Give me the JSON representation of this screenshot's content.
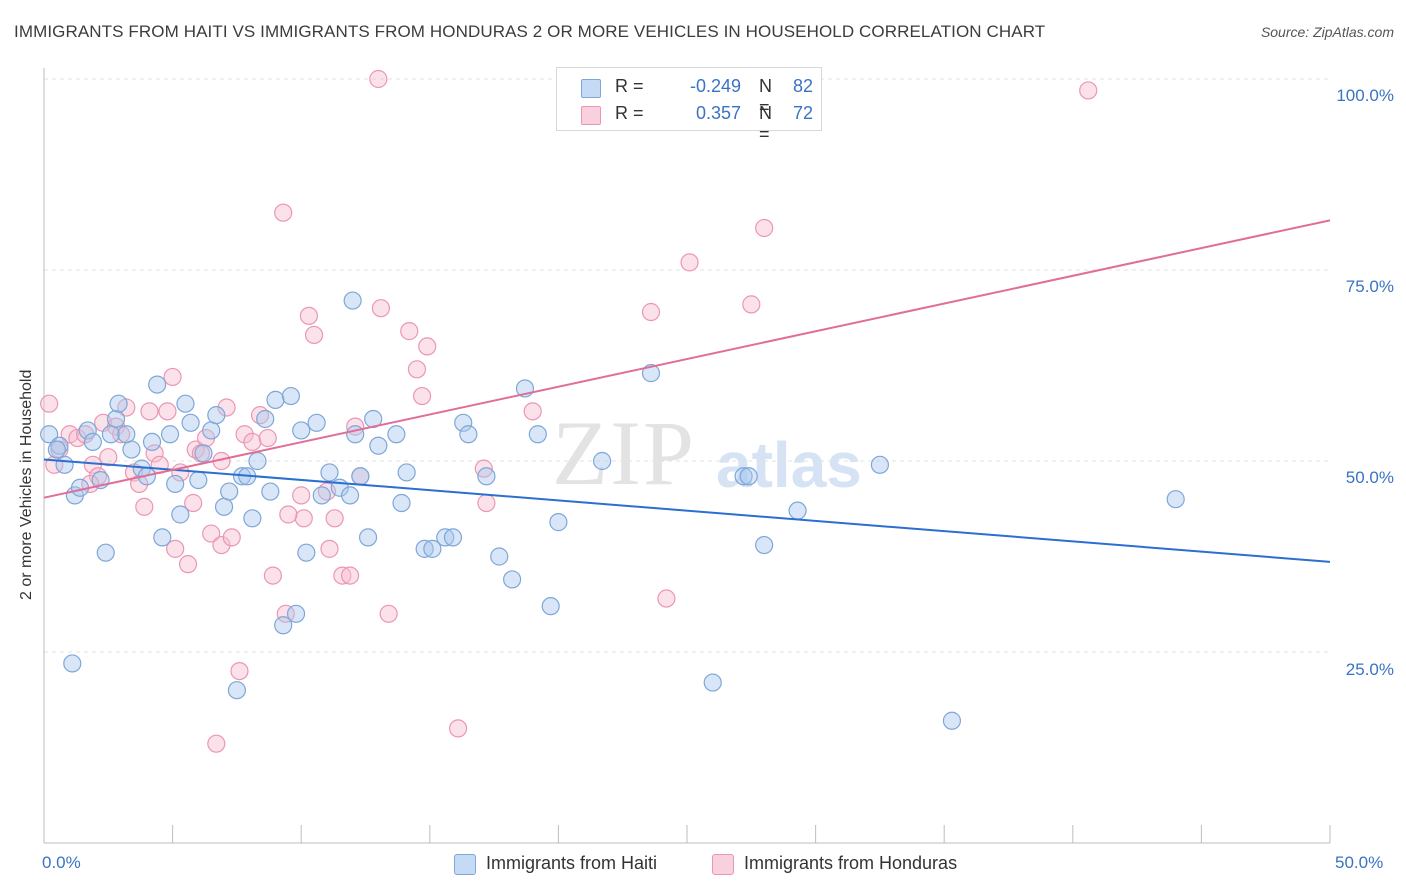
{
  "title": "IMMIGRANTS FROM HAITI VS IMMIGRANTS FROM HONDURAS 2 OR MORE VEHICLES IN HOUSEHOLD CORRELATION CHART",
  "source": "Source: ZipAtlas.com",
  "watermark": {
    "zip": "ZIP",
    "atlas": "atlas"
  },
  "legend": {
    "haiti": {
      "r_label": "R =",
      "r_value": "-0.249",
      "n_label": "N =",
      "n_value": "82"
    },
    "honduras": {
      "r_label": "R =",
      "r_value": "0.357",
      "n_label": "N =",
      "n_value": "72"
    }
  },
  "bottom_legend": {
    "haiti": "Immigrants from Haiti",
    "honduras": "Immigrants from Honduras"
  },
  "colors": {
    "haiti_fill": "#a9c8ee",
    "haiti_stroke": "#7ea7d8",
    "haiti_line": "#2a6fd1",
    "honduras_fill": "#f6bed0",
    "honduras_stroke": "#ec96b3",
    "honduras_line": "#e06e97",
    "tick_text": "#3a73c4",
    "grid": "#e2e2e2"
  },
  "chart_data": {
    "type": "scatter",
    "title": "IMMIGRANTS FROM HAITI VS IMMIGRANTS FROM HONDURAS 2 OR MORE VEHICLES IN HOUSEHOLD CORRELATION CHART",
    "xlabel": "",
    "ylabel": "2 or more Vehicles in Household",
    "xlim": [
      0,
      50
    ],
    "ylim": [
      0,
      100
    ],
    "x_tick_labels": [
      "0.0%",
      "50.0%"
    ],
    "y_ticks": [
      25,
      50,
      75,
      100
    ],
    "y_tick_labels": [
      "25.0%",
      "50.0%",
      "75.0%",
      "100.0%"
    ],
    "grid": true,
    "legend_position": "top-center",
    "series": [
      {
        "name": "Immigrants from Haiti",
        "R": -0.249,
        "N": 82,
        "trend": {
          "x": [
            0,
            50
          ],
          "y": [
            50.2,
            36.8
          ]
        },
        "points": [
          [
            0.2,
            53.5
          ],
          [
            0.6,
            52
          ],
          [
            0.8,
            49.5
          ],
          [
            1.1,
            23.5
          ],
          [
            1.2,
            45.5
          ],
          [
            1.4,
            46.5
          ],
          [
            1.7,
            54
          ],
          [
            1.9,
            52.5
          ],
          [
            2.2,
            47.5
          ],
          [
            2.4,
            38
          ],
          [
            2.6,
            53.5
          ],
          [
            2.8,
            55.5
          ],
          [
            2.9,
            57.5
          ],
          [
            3.2,
            53.5
          ],
          [
            3.4,
            51.5
          ],
          [
            3.8,
            49
          ],
          [
            4.0,
            48
          ],
          [
            4.2,
            52.5
          ],
          [
            4.4,
            60
          ],
          [
            4.6,
            40
          ],
          [
            4.9,
            53.5
          ],
          [
            5.1,
            47
          ],
          [
            5.3,
            43
          ],
          [
            5.5,
            57.5
          ],
          [
            5.7,
            55
          ],
          [
            6.0,
            47.5
          ],
          [
            6.2,
            51
          ],
          [
            6.5,
            54
          ],
          [
            6.7,
            56
          ],
          [
            7.0,
            44
          ],
          [
            7.2,
            46
          ],
          [
            7.5,
            20
          ],
          [
            7.7,
            48
          ],
          [
            7.9,
            48
          ],
          [
            8.1,
            42.5
          ],
          [
            8.3,
            50
          ],
          [
            8.6,
            55.5
          ],
          [
            8.8,
            46
          ],
          [
            9.0,
            58
          ],
          [
            9.3,
            28.5
          ],
          [
            9.6,
            58.5
          ],
          [
            9.8,
            30
          ],
          [
            10.0,
            54
          ],
          [
            10.2,
            38
          ],
          [
            10.6,
            55
          ],
          [
            10.8,
            45.5
          ],
          [
            11.1,
            48.5
          ],
          [
            11.5,
            46.5
          ],
          [
            11.9,
            45.5
          ],
          [
            12.0,
            71
          ],
          [
            12.1,
            53.5
          ],
          [
            12.3,
            48
          ],
          [
            12.6,
            40
          ],
          [
            12.8,
            55.5
          ],
          [
            13.0,
            52
          ],
          [
            13.7,
            53.5
          ],
          [
            13.9,
            44.5
          ],
          [
            14.1,
            48.5
          ],
          [
            14.8,
            38.5
          ],
          [
            15.1,
            38.5
          ],
          [
            15.6,
            40
          ],
          [
            15.9,
            40
          ],
          [
            16.3,
            55
          ],
          [
            16.5,
            53.5
          ],
          [
            17.2,
            48
          ],
          [
            17.7,
            37.5
          ],
          [
            18.2,
            34.5
          ],
          [
            18.7,
            59.5
          ],
          [
            19.2,
            53.5
          ],
          [
            19.7,
            31
          ],
          [
            20.0,
            42
          ],
          [
            21.7,
            50
          ],
          [
            23.6,
            61.5
          ],
          [
            26.0,
            21
          ],
          [
            27.2,
            48
          ],
          [
            27.4,
            48
          ],
          [
            28.0,
            39
          ],
          [
            29.3,
            43.5
          ],
          [
            32.5,
            49.5
          ],
          [
            35.3,
            16
          ],
          [
            44.0,
            45
          ],
          [
            0.5,
            51.5
          ]
        ]
      },
      {
        "name": "Immigrants from Honduras",
        "R": 0.357,
        "N": 72,
        "trend": {
          "x": [
            0,
            50
          ],
          "y": [
            45.2,
            81.5
          ]
        },
        "points": [
          [
            0.2,
            57.5
          ],
          [
            0.4,
            49.5
          ],
          [
            0.6,
            51.5
          ],
          [
            1.0,
            53.5
          ],
          [
            1.3,
            53
          ],
          [
            1.6,
            53.5
          ],
          [
            1.9,
            49.5
          ],
          [
            2.1,
            48
          ],
          [
            2.3,
            55
          ],
          [
            2.5,
            50.5
          ],
          [
            2.8,
            54.5
          ],
          [
            3.0,
            53.5
          ],
          [
            3.2,
            57
          ],
          [
            3.5,
            48.5
          ],
          [
            3.7,
            47
          ],
          [
            3.9,
            44
          ],
          [
            4.1,
            56.5
          ],
          [
            4.3,
            51
          ],
          [
            4.5,
            49.5
          ],
          [
            4.8,
            56.5
          ],
          [
            5.0,
            61
          ],
          [
            5.1,
            38.5
          ],
          [
            5.3,
            48.5
          ],
          [
            5.6,
            36.5
          ],
          [
            5.8,
            44.5
          ],
          [
            5.9,
            51.5
          ],
          [
            6.1,
            51
          ],
          [
            6.3,
            53
          ],
          [
            6.5,
            40.5
          ],
          [
            6.7,
            13
          ],
          [
            6.9,
            39
          ],
          [
            7.1,
            57
          ],
          [
            7.3,
            40
          ],
          [
            7.6,
            22.5
          ],
          [
            7.8,
            53.5
          ],
          [
            8.1,
            52.5
          ],
          [
            8.4,
            56
          ],
          [
            8.7,
            53
          ],
          [
            8.9,
            35
          ],
          [
            9.3,
            82.5
          ],
          [
            9.4,
            30
          ],
          [
            10.0,
            45.5
          ],
          [
            10.1,
            42.5
          ],
          [
            10.3,
            69
          ],
          [
            10.5,
            66.5
          ],
          [
            11.1,
            38.5
          ],
          [
            11.3,
            42.5
          ],
          [
            11.6,
            35
          ],
          [
            11.9,
            35
          ],
          [
            12.1,
            54.5
          ],
          [
            12.3,
            48
          ],
          [
            13.0,
            100
          ],
          [
            13.1,
            70
          ],
          [
            13.4,
            30
          ],
          [
            14.2,
            67
          ],
          [
            14.5,
            62
          ],
          [
            14.7,
            58.5
          ],
          [
            14.9,
            65
          ],
          [
            16.1,
            15
          ],
          [
            17.1,
            49
          ],
          [
            17.2,
            44.5
          ],
          [
            19.0,
            56.5
          ],
          [
            23.6,
            69.5
          ],
          [
            24.2,
            32
          ],
          [
            25.1,
            76
          ],
          [
            27.5,
            70.5
          ],
          [
            28.0,
            80.5
          ],
          [
            40.6,
            98.5
          ],
          [
            1.8,
            47
          ],
          [
            6.9,
            50
          ],
          [
            9.5,
            43
          ],
          [
            11.0,
            46
          ]
        ]
      }
    ]
  }
}
